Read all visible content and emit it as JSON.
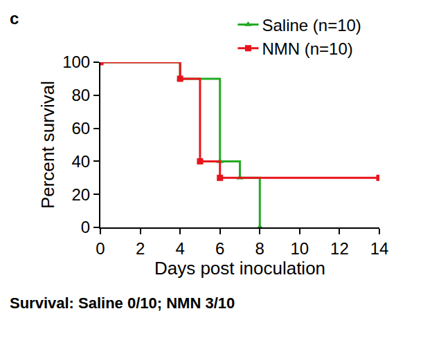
{
  "chart_data": {
    "type": "line",
    "panel_label": "c",
    "caption": "Survival: Saline 0/10; NMN 3/10",
    "x_label": "Days post inoculation",
    "y_label": "Percent survival",
    "line_style": "step",
    "legend": "upper right",
    "grid": false,
    "xlim": [
      0,
      14
    ],
    "xticks": [
      0,
      2,
      4,
      6,
      8,
      10,
      12,
      14
    ],
    "ylim": [
      0,
      100
    ],
    "yticks": [
      0,
      20,
      40,
      60,
      80,
      100
    ],
    "series": [
      {
        "name": "Saline (n=10)",
        "color": "#22aa22",
        "marker": "triangle-up",
        "x": [
          0,
          4,
          6,
          7,
          8
        ],
        "values": [
          100,
          90,
          40,
          30,
          0
        ]
      },
      {
        "name": "NMN (n=10)",
        "color": "#e8141c",
        "marker": "square",
        "x": [
          0,
          4,
          5,
          6,
          14
        ],
        "values": [
          100,
          90,
          40,
          30,
          30
        ]
      }
    ]
  }
}
